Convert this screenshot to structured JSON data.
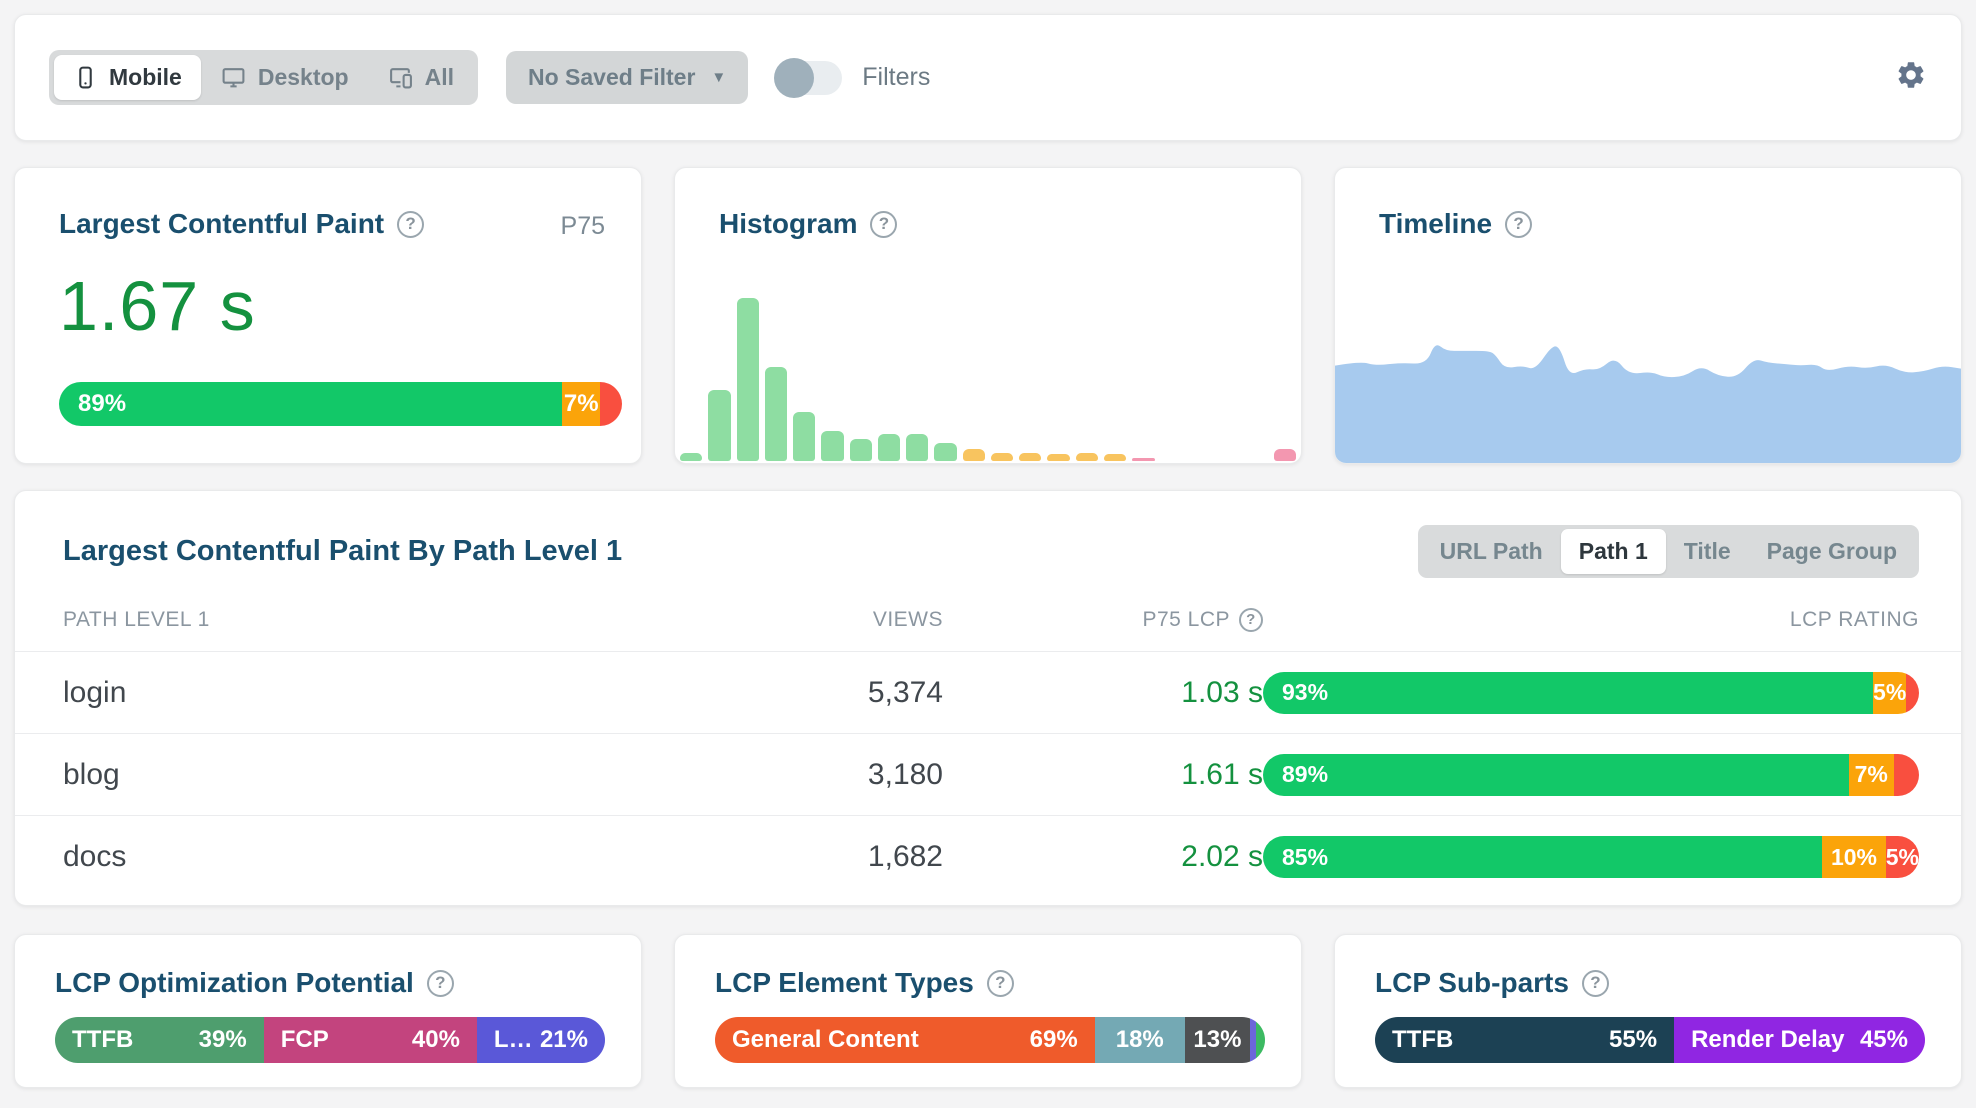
{
  "toolbar": {
    "device": {
      "options": [
        {
          "label": "Mobile",
          "active": true
        },
        {
          "label": "Desktop",
          "active": false
        },
        {
          "label": "All",
          "active": false
        }
      ]
    },
    "saved_filter_label": "No Saved Filter",
    "filters_label": "Filters",
    "filters_on": false
  },
  "metrics": {
    "lcp": {
      "title": "Largest Contentful Paint",
      "percentile": "P75",
      "value": "1.67 s",
      "rating": [
        {
          "grow": 89,
          "color": "#12c868",
          "label": "89%",
          "align": "left"
        },
        {
          "grow": 7,
          "color": "#fba40a",
          "label": "7%",
          "align": "center"
        },
        {
          "grow": 4,
          "color": "#f94f3f"
        }
      ]
    },
    "histogram": {
      "title": "Histogram"
    },
    "timeline": {
      "title": "Timeline"
    }
  },
  "chart_data": {
    "histogram": {
      "type": "bar",
      "values": [
        5,
        42,
        97,
        56,
        29,
        18,
        13,
        16,
        16,
        11,
        7,
        5,
        5,
        4,
        5,
        4,
        2,
        0,
        0,
        0,
        0,
        7
      ],
      "colors": [
        "#8edda2",
        "#8edda2",
        "#8edda2",
        "#8edda2",
        "#8edda2",
        "#8edda2",
        "#8edda2",
        "#8edda2",
        "#8edda2",
        "#8edda2",
        "#f8c45f",
        "#f8c45f",
        "#f8c45f",
        "#f8c45f",
        "#f8c45f",
        "#f8c45f",
        "#f397b0",
        "#f397b0",
        "#f397b0",
        "#f397b0",
        "#f397b0",
        "#f397b0"
      ],
      "title": "Histogram",
      "legend": {
        "good_color": "#8edda2",
        "needs_improvement_color": "#f8c45f",
        "poor_color": "#f397b0"
      }
    },
    "timeline": {
      "type": "area",
      "fill": "#a7caee",
      "title": "Timeline",
      "points": [
        [
          0,
          33
        ],
        [
          4,
          34.5
        ],
        [
          6.6,
          33
        ],
        [
          10.5,
          34
        ],
        [
          14.6,
          33.5
        ],
        [
          16,
          41
        ],
        [
          17.7,
          38
        ],
        [
          20.4,
          38
        ],
        [
          24.7,
          38
        ],
        [
          25.7,
          36.5
        ],
        [
          27.1,
          32
        ],
        [
          30,
          33
        ],
        [
          32,
          31.5
        ],
        [
          34.7,
          40
        ],
        [
          36,
          39
        ],
        [
          37.4,
          29.5
        ],
        [
          39.9,
          32
        ],
        [
          42.2,
          31.5
        ],
        [
          44.7,
          36
        ],
        [
          46.9,
          30
        ],
        [
          50.6,
          31
        ],
        [
          52.6,
          29
        ],
        [
          55.8,
          29.3
        ],
        [
          58.5,
          33
        ],
        [
          61.2,
          29.5
        ],
        [
          64.3,
          29
        ],
        [
          66.9,
          35.5
        ],
        [
          69.1,
          34
        ],
        [
          72.3,
          33.5
        ],
        [
          74.3,
          33
        ],
        [
          77,
          33.5
        ],
        [
          78.6,
          31
        ],
        [
          82,
          33
        ],
        [
          85,
          32
        ],
        [
          88,
          33.5
        ],
        [
          91,
          30.5
        ],
        [
          94,
          31
        ],
        [
          97,
          33
        ],
        [
          100,
          32
        ]
      ]
    }
  },
  "table": {
    "title": "Largest Contentful Paint By Path Level 1",
    "tabs": [
      {
        "label": "URL Path",
        "active": false
      },
      {
        "label": "Path 1",
        "active": true
      },
      {
        "label": "Title",
        "active": false
      },
      {
        "label": "Page Group",
        "active": false
      }
    ],
    "columns": {
      "path": "PATH LEVEL 1",
      "views": "VIEWS",
      "p75": "P75 LCP",
      "rating": "LCP RATING"
    },
    "rows": [
      {
        "path": "login",
        "views": "5,374",
        "p75": "1.03 s",
        "rating": [
          {
            "grow": 93,
            "color": "#12c868",
            "label": "93%",
            "align": "left"
          },
          {
            "grow": 5,
            "color": "#fba40a",
            "label": "5%",
            "align": "center"
          },
          {
            "grow": 2,
            "color": "#f94f3f"
          }
        ]
      },
      {
        "path": "blog",
        "views": "3,180",
        "p75": "1.61 s",
        "rating": [
          {
            "grow": 89,
            "color": "#12c868",
            "label": "89%",
            "align": "left"
          },
          {
            "grow": 7,
            "color": "#fba40a",
            "label": "7%",
            "align": "center"
          },
          {
            "grow": 4,
            "color": "#f94f3f"
          }
        ]
      },
      {
        "path": "docs",
        "views": "1,682",
        "p75": "2.02 s",
        "rating": [
          {
            "grow": 85,
            "color": "#12c868",
            "label": "85%",
            "align": "left"
          },
          {
            "grow": 10,
            "color": "#fba40a",
            "label": "10%",
            "align": "center"
          },
          {
            "grow": 5,
            "color": "#f94f3f",
            "label": "5%",
            "align": "center"
          }
        ]
      }
    ]
  },
  "bottom": {
    "optimization": {
      "title": "LCP Optimization Potential",
      "bar": [
        {
          "label": "TTFB",
          "value": "39%",
          "grow": 39,
          "color": "#4e9e6e"
        },
        {
          "label": "FCP",
          "value": "40%",
          "grow": 40,
          "color": "#c3447e"
        },
        {
          "label": "L…",
          "value": "21%",
          "grow": 21,
          "color": "#5a58d8"
        }
      ]
    },
    "element_types": {
      "title": "LCP Element Types",
      "bar": [
        {
          "label": "General Content",
          "value": "69%",
          "grow": 69,
          "color": "#ef5b2b"
        },
        {
          "label": "18%",
          "align": "center",
          "grow": 18,
          "color": "#74a9b4"
        },
        {
          "label": "13%",
          "align": "center",
          "grow": 13,
          "color": "#4e5052"
        },
        {
          "grow": 1.2,
          "color": "#6c66da"
        },
        {
          "grow": 1.8,
          "color": "#3cba62"
        }
      ]
    },
    "subparts": {
      "title": "LCP Sub-parts",
      "bar": [
        {
          "label": "TTFB",
          "value": "55%",
          "grow": 55,
          "color": "#1c4154"
        },
        {
          "label": "Render Delay",
          "value": "45%",
          "grow": 45,
          "color": "#9026e2"
        }
      ]
    }
  }
}
